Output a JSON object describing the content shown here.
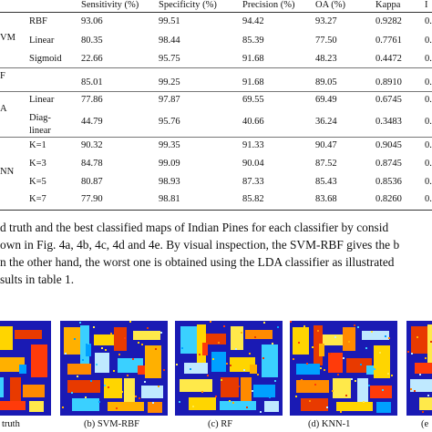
{
  "table": {
    "headers": [
      "Sensitivity (%)",
      "Specificity (%)",
      "Precision (%)",
      "OA (%)",
      "Kappa",
      "I"
    ],
    "groups": [
      {
        "name": "VM",
        "rows": [
          {
            "label": "RBF",
            "values": [
              "93.06",
              "99.51",
              "94.42",
              "93.27",
              "0.9282",
              "0."
            ]
          },
          {
            "label": "Linear",
            "values": [
              "80.35",
              "98.44",
              "85.39",
              "77.50",
              "0.7761",
              "0."
            ]
          },
          {
            "label": "Sigmoid",
            "values": [
              "22.66",
              "95.75",
              "91.68",
              "48.23",
              "0.4472",
              "0."
            ]
          }
        ]
      },
      {
        "name": "F",
        "rows": [
          {
            "label": "",
            "values": [
              "85.01",
              "99.25",
              "91.68",
              "89.05",
              "0.8910",
              "0."
            ]
          }
        ]
      },
      {
        "name": "A",
        "rows": [
          {
            "label": "Linear",
            "values": [
              "77.86",
              "97.87",
              "69.55",
              "69.49",
              "0.6745",
              "0."
            ]
          },
          {
            "label": "Diag-",
            "label2": "linear",
            "values": [
              "44.79",
              "95.76",
              "40.66",
              "36.24",
              "0.3483",
              "0."
            ]
          }
        ]
      },
      {
        "name": "NN",
        "rows": [
          {
            "label": "K=1",
            "values": [
              "90.32",
              "99.35",
              "91.33",
              "90.47",
              "0.9045",
              "0."
            ]
          },
          {
            "label": "K=3",
            "values": [
              "84.78",
              "99.09",
              "90.04",
              "87.52",
              "0.8745",
              "0."
            ]
          },
          {
            "label": "K=5",
            "values": [
              "80.87",
              "98.93",
              "87.33",
              "85.43",
              "0.8536",
              "0."
            ]
          },
          {
            "label": "K=7",
            "values": [
              "77.90",
              "98.81",
              "85.82",
              "83.68",
              "0.8260",
              "0."
            ]
          }
        ]
      }
    ]
  },
  "paragraph": {
    "lines": [
      "d truth and the best classified maps of Indian Pines for each classifier by consid",
      "own in Fig. 4a, 4b, 4c, 4d and 4e. By visual inspection, the SVM-RBF gives the b",
      "n the other hand, the worst one is obtained using the LDA classifier as illustrated",
      "sults in table 1."
    ]
  },
  "figures": {
    "captions": [
      "truth",
      "(b) SVM-RBF",
      "(c) RF",
      "(d) KNN-1",
      "(e"
    ]
  },
  "colors": {
    "map_background": "#1a1ab4",
    "class_palette": [
      "#ff3b0a",
      "#ffb000",
      "#3ad0ff",
      "#ffd500",
      "#e83a00",
      "#ffe94a",
      "#ff8a00",
      "#bfe9ff",
      "#00a0ff"
    ]
  }
}
